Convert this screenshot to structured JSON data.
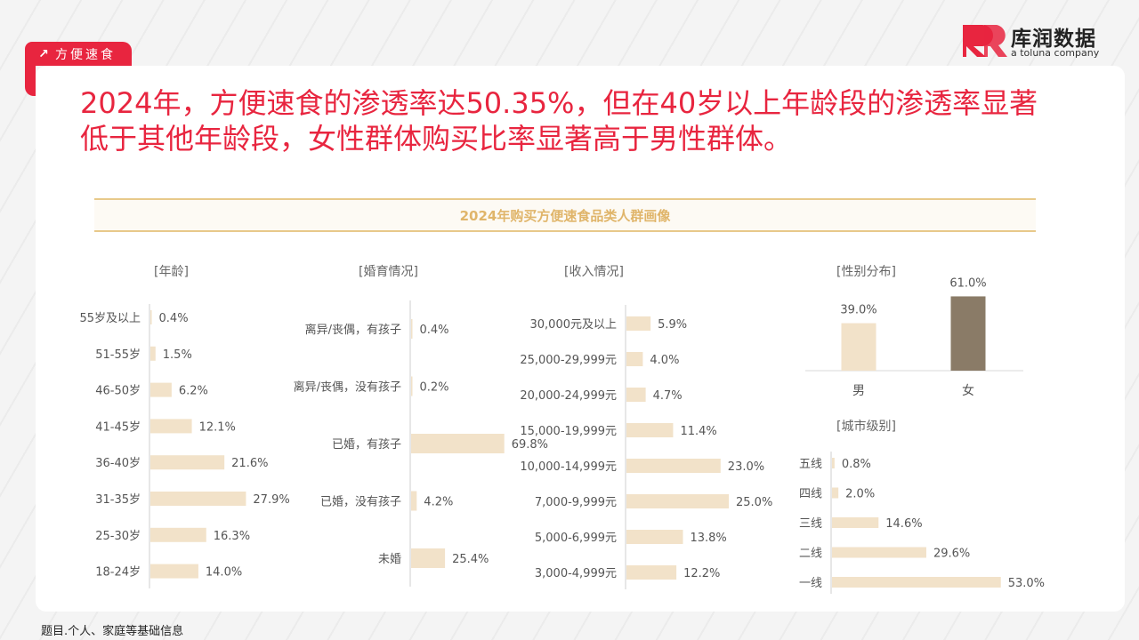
{
  "section_tag": {
    "label": "方便速食",
    "icon": "arrow-up-right-icon"
  },
  "logo": {
    "name_cn": "库润数据",
    "name_en": "a toluna company"
  },
  "headline": "2024年，方便速食的渗透率达50.35%，但在40岁以上年龄段的渗透率显著低于其他年龄段，女性群体购买比率显著高于男性群体。",
  "banner_title": "2024年购买方便速食品类人群画像",
  "footnote": "题目.个人、家庭等基础信息",
  "colors": {
    "accent": "#e8253f",
    "bar": "#f2e2c9",
    "bar_dark": "#8a7b67",
    "banner_text": "#e0b56a"
  },
  "chart_data": [
    {
      "id": "age",
      "type": "bar",
      "orientation": "horizontal",
      "title": "[年龄]",
      "categories": [
        "55岁及以上",
        "51-55岁",
        "46-50岁",
        "41-45岁",
        "36-40岁",
        "31-35岁",
        "25-30岁",
        "18-24岁"
      ],
      "values": [
        0.4,
        1.5,
        6.2,
        12.1,
        21.6,
        27.9,
        16.3,
        14.0
      ],
      "labels": [
        "0.4%",
        "1.5%",
        "6.2%",
        "12.1%",
        "21.6%",
        "27.9%",
        "16.3%",
        "14.0%"
      ]
    },
    {
      "id": "marriage",
      "type": "bar",
      "orientation": "horizontal",
      "title": "[婚育情况]",
      "categories": [
        "离异/丧偶，有孩子",
        "离异/丧偶，没有孩子",
        "已婚，有孩子",
        "已婚，没有孩子",
        "未婚"
      ],
      "values": [
        0.4,
        0.2,
        69.8,
        4.2,
        25.4
      ],
      "labels": [
        "0.4%",
        "0.2%",
        "69.8%",
        "4.2%",
        "25.4%"
      ]
    },
    {
      "id": "income",
      "type": "bar",
      "orientation": "horizontal",
      "title": "[收入情况]",
      "categories": [
        "30,000元及以上",
        "25,000-29,999元",
        "20,000-24,999元",
        "15,000-19,999元",
        "10,000-14,999元",
        "7,000-9,999元",
        "5,000-6,999元",
        "3,000-4,999元"
      ],
      "values": [
        5.9,
        4.0,
        4.7,
        11.4,
        23.0,
        25.0,
        13.8,
        12.2
      ],
      "labels": [
        "5.9%",
        "4.0%",
        "4.7%",
        "11.4%",
        "23.0%",
        "25.0%",
        "13.8%",
        "12.2%"
      ]
    },
    {
      "id": "gender",
      "type": "bar",
      "orientation": "vertical",
      "title": "[性别分布]",
      "categories": [
        "男",
        "女"
      ],
      "values": [
        39.0,
        61.0
      ],
      "labels": [
        "39.0%",
        "61.0%"
      ]
    },
    {
      "id": "city",
      "type": "bar",
      "orientation": "horizontal",
      "title": "[城市级别]",
      "categories": [
        "五线",
        "四线",
        "三线",
        "二线",
        "一线"
      ],
      "values": [
        0.8,
        2.0,
        14.6,
        29.6,
        53.0
      ],
      "labels": [
        "0.8%",
        "2.0%",
        "14.6%",
        "29.6%",
        "53.0%"
      ]
    }
  ]
}
